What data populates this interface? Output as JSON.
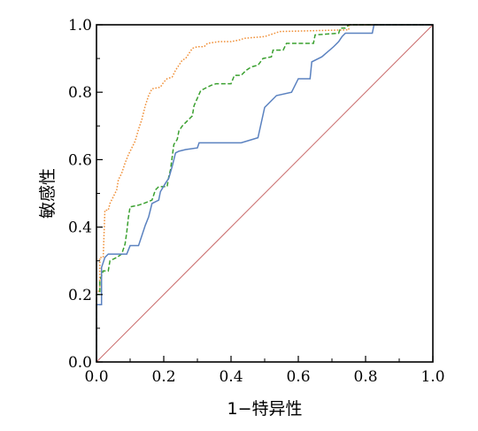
{
  "chart_data": {
    "type": "line",
    "title": "",
    "xlabel": "1−特异性",
    "ylabel": "敏感性",
    "xlim": [
      0,
      1
    ],
    "ylim": [
      0,
      1
    ],
    "xticks": [
      "0.0",
      "0.2",
      "0.4",
      "0.6",
      "0.8",
      "1.0"
    ],
    "yticks": [
      "0.0",
      "0.2",
      "0.4",
      "0.6",
      "0.8",
      "1.0"
    ],
    "grid": false,
    "legend": "none",
    "series": [
      {
        "color": "#5b82c0",
        "style": "solid",
        "points": [
          [
            0,
            0
          ],
          [
            0,
            0.17
          ],
          [
            0.015,
            0.17
          ],
          [
            0.015,
            0.28
          ],
          [
            0.025,
            0.31
          ],
          [
            0.035,
            0.32
          ],
          [
            0.09,
            0.32
          ],
          [
            0.1,
            0.345
          ],
          [
            0.125,
            0.345
          ],
          [
            0.135,
            0.375
          ],
          [
            0.145,
            0.405
          ],
          [
            0.155,
            0.43
          ],
          [
            0.165,
            0.47
          ],
          [
            0.185,
            0.48
          ],
          [
            0.19,
            0.505
          ],
          [
            0.205,
            0.53
          ],
          [
            0.215,
            0.545
          ],
          [
            0.225,
            0.58
          ],
          [
            0.235,
            0.62
          ],
          [
            0.245,
            0.625
          ],
          [
            0.265,
            0.63
          ],
          [
            0.3,
            0.635
          ],
          [
            0.305,
            0.65
          ],
          [
            0.43,
            0.65
          ],
          [
            0.48,
            0.665
          ],
          [
            0.5,
            0.755
          ],
          [
            0.535,
            0.79
          ],
          [
            0.58,
            0.8
          ],
          [
            0.6,
            0.84
          ],
          [
            0.635,
            0.84
          ],
          [
            0.64,
            0.89
          ],
          [
            0.67,
            0.905
          ],
          [
            0.705,
            0.935
          ],
          [
            0.72,
            0.95
          ],
          [
            0.73,
            0.965
          ],
          [
            0.74,
            0.975
          ],
          [
            0.82,
            0.975
          ],
          [
            0.825,
            1
          ],
          [
            1,
            1
          ]
        ]
      },
      {
        "color": "#3aa02f",
        "style": "dashed",
        "points": [
          [
            0,
            0
          ],
          [
            0,
            0.2
          ],
          [
            0.01,
            0.2
          ],
          [
            0.01,
            0.24
          ],
          [
            0.02,
            0.27
          ],
          [
            0.035,
            0.27
          ],
          [
            0.04,
            0.3
          ],
          [
            0.06,
            0.31
          ],
          [
            0.075,
            0.32
          ],
          [
            0.085,
            0.35
          ],
          [
            0.09,
            0.385
          ],
          [
            0.095,
            0.43
          ],
          [
            0.1,
            0.46
          ],
          [
            0.125,
            0.465
          ],
          [
            0.14,
            0.47
          ],
          [
            0.165,
            0.48
          ],
          [
            0.175,
            0.51
          ],
          [
            0.185,
            0.52
          ],
          [
            0.21,
            0.52
          ],
          [
            0.215,
            0.55
          ],
          [
            0.22,
            0.57
          ],
          [
            0.23,
            0.645
          ],
          [
            0.24,
            0.66
          ],
          [
            0.245,
            0.685
          ],
          [
            0.255,
            0.7
          ],
          [
            0.285,
            0.73
          ],
          [
            0.29,
            0.76
          ],
          [
            0.31,
            0.805
          ],
          [
            0.32,
            0.81
          ],
          [
            0.34,
            0.82
          ],
          [
            0.355,
            0.825
          ],
          [
            0.4,
            0.825
          ],
          [
            0.41,
            0.85
          ],
          [
            0.43,
            0.85
          ],
          [
            0.445,
            0.865
          ],
          [
            0.46,
            0.875
          ],
          [
            0.48,
            0.88
          ],
          [
            0.495,
            0.9
          ],
          [
            0.52,
            0.905
          ],
          [
            0.525,
            0.925
          ],
          [
            0.555,
            0.925
          ],
          [
            0.565,
            0.945
          ],
          [
            0.645,
            0.945
          ],
          [
            0.65,
            0.97
          ],
          [
            0.72,
            0.975
          ],
          [
            0.725,
            0.99
          ],
          [
            0.74,
            0.99
          ],
          [
            0.75,
            1
          ],
          [
            1,
            1
          ]
        ]
      },
      {
        "color": "#f0913a",
        "style": "dotted",
        "points": [
          [
            0,
            0
          ],
          [
            0,
            0.21
          ],
          [
            0.01,
            0.21
          ],
          [
            0.01,
            0.31
          ],
          [
            0.02,
            0.31
          ],
          [
            0.025,
            0.45
          ],
          [
            0.035,
            0.45
          ],
          [
            0.04,
            0.47
          ],
          [
            0.05,
            0.49
          ],
          [
            0.06,
            0.51
          ],
          [
            0.065,
            0.54
          ],
          [
            0.075,
            0.56
          ],
          [
            0.085,
            0.59
          ],
          [
            0.095,
            0.615
          ],
          [
            0.105,
            0.635
          ],
          [
            0.115,
            0.655
          ],
          [
            0.125,
            0.69
          ],
          [
            0.135,
            0.72
          ],
          [
            0.14,
            0.74
          ],
          [
            0.145,
            0.76
          ],
          [
            0.155,
            0.79
          ],
          [
            0.165,
            0.81
          ],
          [
            0.19,
            0.815
          ],
          [
            0.2,
            0.83
          ],
          [
            0.21,
            0.84
          ],
          [
            0.225,
            0.845
          ],
          [
            0.235,
            0.865
          ],
          [
            0.245,
            0.88
          ],
          [
            0.255,
            0.895
          ],
          [
            0.265,
            0.9
          ],
          [
            0.275,
            0.915
          ],
          [
            0.285,
            0.93
          ],
          [
            0.3,
            0.935
          ],
          [
            0.32,
            0.935
          ],
          [
            0.33,
            0.945
          ],
          [
            0.365,
            0.95
          ],
          [
            0.4,
            0.95
          ],
          [
            0.425,
            0.955
          ],
          [
            0.44,
            0.96
          ],
          [
            0.5,
            0.965
          ],
          [
            0.53,
            0.975
          ],
          [
            0.545,
            0.98
          ],
          [
            0.75,
            0.985
          ],
          [
            0.75,
            1
          ],
          [
            1,
            1
          ]
        ]
      },
      {
        "color": "#c96a6a",
        "style": "solid",
        "points": [
          [
            0,
            0
          ],
          [
            1,
            1
          ]
        ]
      }
    ]
  }
}
